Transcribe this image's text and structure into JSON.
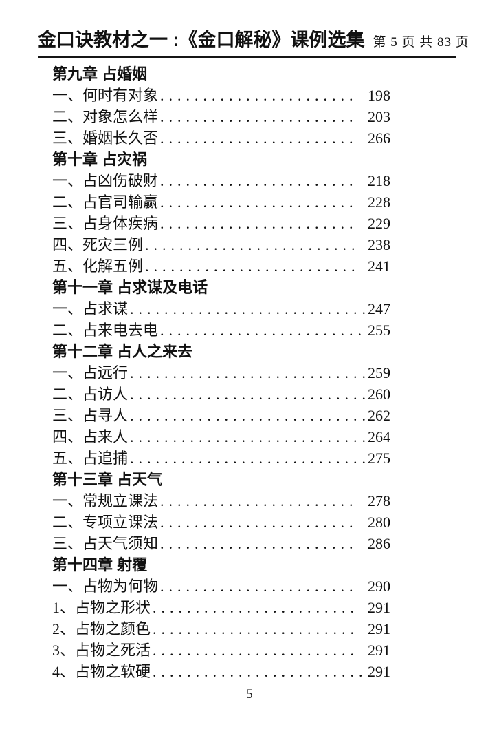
{
  "header": {
    "title": "金口诀教材之一 :《金口解秘》课例选集",
    "page_info": "第 5 页 共 83 页"
  },
  "toc": {
    "sections": [
      {
        "heading": "第九章 占婚姻",
        "entries": [
          {
            "title": "一、何时有对象",
            "page": "198"
          },
          {
            "title": "二、对象怎么样",
            "page": "203"
          },
          {
            "title": "三、婚姻长久否",
            "page": "266"
          }
        ]
      },
      {
        "heading": "第十章 占灾祸",
        "entries": [
          {
            "title": "一、占凶伤破财",
            "page": "218"
          },
          {
            "title": "二、占官司输赢",
            "page": "228"
          },
          {
            "title": "三、占身体疾病",
            "page": "229"
          },
          {
            "title": "四、死灾三例",
            "page": "238"
          },
          {
            "title": "五、化解五例",
            "page": "241"
          }
        ]
      },
      {
        "heading": "第十一章 占求谋及电话",
        "entries": [
          {
            "title": "一、占求谋",
            "page": "247"
          },
          {
            "title": "二、占来电去电",
            "page": "255"
          }
        ]
      },
      {
        "heading": "第十二章 占人之来去",
        "entries": [
          {
            "title": "一、占远行",
            "page": "259"
          },
          {
            "title": "二、占访人",
            "page": "260"
          },
          {
            "title": "三、占寻人",
            "page": "262"
          },
          {
            "title": "四、占来人",
            "page": "264"
          },
          {
            "title": "五、占追捕",
            "page": "275"
          }
        ]
      },
      {
        "heading": "第十三章 占天气",
        "entries": [
          {
            "title": "一、常规立课法",
            "page": "278"
          },
          {
            "title": "二、专项立课法",
            "page": "280"
          },
          {
            "title": "三、占天气须知",
            "page": "286"
          }
        ]
      },
      {
        "heading": "第十四章 射覆",
        "entries": [
          {
            "title": "一、占物为何物",
            "page": "290"
          },
          {
            "title": "1、占物之形状",
            "page": "291"
          },
          {
            "title": "2、占物之颜色",
            "page": "291"
          },
          {
            "title": "3、占物之死活",
            "page": "291"
          },
          {
            "title": "4、占物之软硬",
            "page": "291"
          }
        ]
      }
    ]
  },
  "footer": {
    "page_number": "5"
  }
}
